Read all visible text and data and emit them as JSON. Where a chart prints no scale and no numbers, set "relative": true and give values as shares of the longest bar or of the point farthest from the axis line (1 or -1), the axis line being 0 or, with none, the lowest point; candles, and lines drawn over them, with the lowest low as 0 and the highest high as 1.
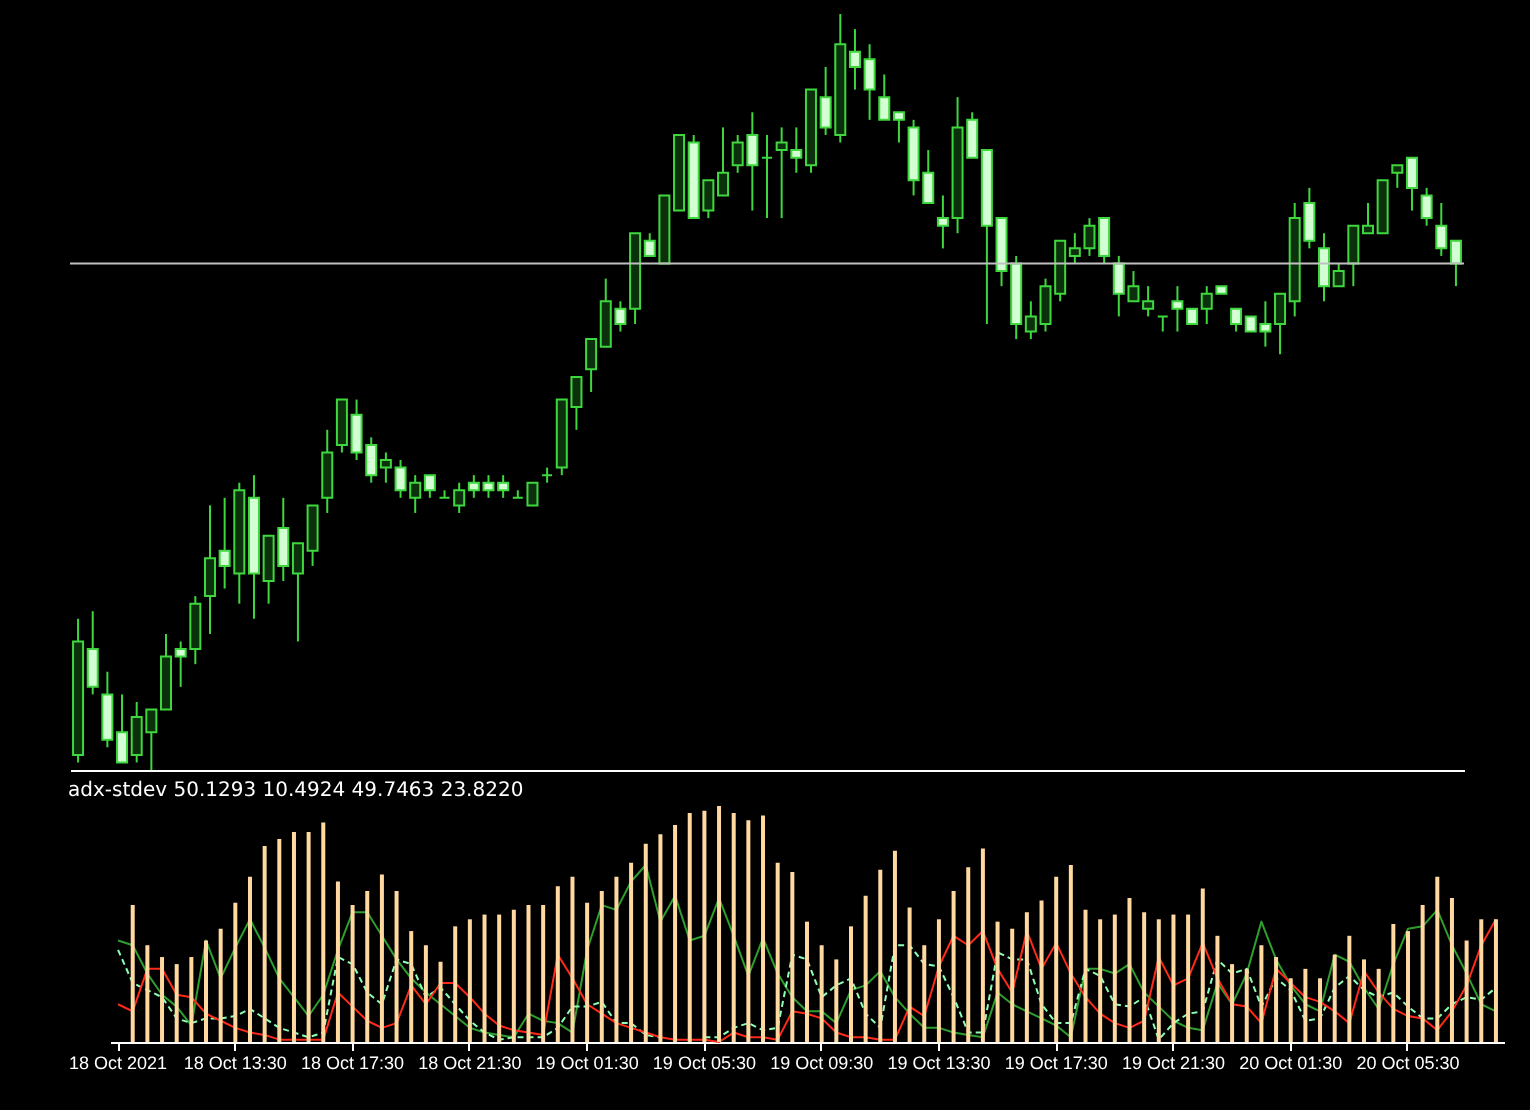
{
  "chart_data": [
    {
      "type": "candlestick",
      "relative": true,
      "tick_labels": false,
      "categories": [
        null,
        null,
        null,
        null,
        null,
        null,
        null,
        null,
        null,
        null,
        null,
        null,
        null,
        null,
        null,
        null,
        null,
        null,
        null,
        null,
        null,
        null,
        null,
        null,
        null,
        null,
        null,
        null,
        null,
        null,
        null,
        null,
        null,
        null,
        null,
        null,
        null,
        null,
        null,
        null,
        null,
        null,
        null,
        null,
        null,
        null,
        null,
        null,
        null,
        null,
        null,
        null,
        null,
        null,
        null,
        null,
        null,
        null,
        null,
        null,
        null,
        null,
        null,
        null,
        null,
        null,
        null,
        null,
        null,
        null,
        null,
        null,
        null,
        null,
        null,
        null,
        null,
        null,
        null,
        null,
        null,
        null,
        null,
        null,
        null,
        null,
        null,
        null,
        null,
        null,
        null,
        null,
        null,
        null,
        null
      ],
      "series": [
        {
          "color": "#3ed83e",
          "ohlc": [
            [
              0.02,
              0.2,
              0.01,
              0.17
            ],
            [
              0.16,
              0.21,
              0.1,
              0.11
            ],
            [
              0.1,
              0.13,
              0.03,
              0.04
            ],
            [
              0.05,
              0.1,
              0.01,
              0.01
            ],
            [
              0.02,
              0.09,
              0.01,
              0.07
            ],
            [
              0.05,
              0.08,
              0,
              0.08
            ],
            [
              0.08,
              0.18,
              0.08,
              0.15
            ],
            [
              0.16,
              0.17,
              0.11,
              0.15
            ],
            [
              0.16,
              0.23,
              0.14,
              0.22
            ],
            [
              0.23,
              0.35,
              0.18,
              0.28
            ],
            [
              0.29,
              0.36,
              0.24,
              0.27
            ],
            [
              0.26,
              0.38,
              0.22,
              0.37
            ],
            [
              0.36,
              0.39,
              0.2,
              0.26
            ],
            [
              0.25,
              0.31,
              0.22,
              0.31
            ],
            [
              0.32,
              0.36,
              0.25,
              0.27
            ],
            [
              0.26,
              0.3,
              0.17,
              0.3
            ],
            [
              0.29,
              0.35,
              0.27,
              0.35
            ],
            [
              0.36,
              0.45,
              0.34,
              0.42
            ],
            [
              0.43,
              0.49,
              0.42,
              0.49
            ],
            [
              0.47,
              0.49,
              0.41,
              0.42
            ],
            [
              0.43,
              0.44,
              0.38,
              0.39
            ],
            [
              0.4,
              0.42,
              0.38,
              0.41
            ],
            [
              0.4,
              0.41,
              0.36,
              0.37
            ],
            [
              0.36,
              0.39,
              0.34,
              0.38
            ],
            [
              0.39,
              0.39,
              0.36,
              0.37
            ],
            [
              0.36,
              0.37,
              0.36,
              0.36
            ],
            [
              0.35,
              0.38,
              0.34,
              0.37
            ],
            [
              0.38,
              0.39,
              0.36,
              0.37
            ],
            [
              0.38,
              0.39,
              0.36,
              0.37
            ],
            [
              0.38,
              0.39,
              0.36,
              0.37
            ],
            [
              0.36,
              0.37,
              0.36,
              0.36
            ],
            [
              0.35,
              0.38,
              0.35,
              0.38
            ],
            [
              0.39,
              0.4,
              0.38,
              0.39
            ],
            [
              0.4,
              0.49,
              0.39,
              0.49
            ],
            [
              0.48,
              0.52,
              0.45,
              0.52
            ],
            [
              0.53,
              0.57,
              0.5,
              0.57
            ],
            [
              0.56,
              0.65,
              0.56,
              0.62
            ],
            [
              0.61,
              0.62,
              0.58,
              0.59
            ],
            [
              0.61,
              0.71,
              0.59,
              0.71
            ],
            [
              0.7,
              0.71,
              0.68,
              0.68
            ],
            [
              0.67,
              0.76,
              0.67,
              0.76
            ],
            [
              0.74,
              0.84,
              0.74,
              0.84
            ],
            [
              0.83,
              0.84,
              0.73,
              0.73
            ],
            [
              0.74,
              0.78,
              0.73,
              0.78
            ],
            [
              0.76,
              0.85,
              0.76,
              0.79
            ],
            [
              0.8,
              0.84,
              0.79,
              0.83
            ],
            [
              0.84,
              0.87,
              0.74,
              0.8
            ],
            [
              0.81,
              0.84,
              0.73,
              0.81
            ],
            [
              0.82,
              0.85,
              0.73,
              0.83
            ],
            [
              0.82,
              0.85,
              0.79,
              0.81
            ],
            [
              0.8,
              0.9,
              0.79,
              0.9
            ],
            [
              0.89,
              0.93,
              0.84,
              0.85
            ],
            [
              0.84,
              1,
              0.83,
              0.96
            ],
            [
              0.95,
              0.98,
              0.9,
              0.93
            ],
            [
              0.94,
              0.96,
              0.86,
              0.9
            ],
            [
              0.89,
              0.92,
              0.86,
              0.86
            ],
            [
              0.87,
              0.87,
              0.83,
              0.86
            ],
            [
              0.85,
              0.86,
              0.76,
              0.78
            ],
            [
              0.79,
              0.82,
              0.75,
              0.75
            ],
            [
              0.73,
              0.76,
              0.69,
              0.72
            ],
            [
              0.73,
              0.89,
              0.71,
              0.85
            ],
            [
              0.86,
              0.87,
              0.81,
              0.81
            ],
            [
              0.82,
              0.82,
              0.59,
              0.72
            ],
            [
              0.73,
              0.73,
              0.64,
              0.66
            ],
            [
              0.67,
              0.68,
              0.57,
              0.59
            ],
            [
              0.58,
              0.62,
              0.57,
              0.6
            ],
            [
              0.59,
              0.65,
              0.58,
              0.64
            ],
            [
              0.63,
              0.7,
              0.62,
              0.7
            ],
            [
              0.68,
              0.71,
              0.67,
              0.69
            ],
            [
              0.69,
              0.73,
              0.68,
              0.72
            ],
            [
              0.73,
              0.73,
              0.67,
              0.68
            ],
            [
              0.67,
              0.68,
              0.6,
              0.63
            ],
            [
              0.62,
              0.66,
              0.62,
              0.64
            ],
            [
              0.61,
              0.64,
              0.6,
              0.62
            ],
            [
              0.6,
              0.6,
              0.58,
              0.6
            ],
            [
              0.62,
              0.64,
              0.58,
              0.61
            ],
            [
              0.61,
              0.61,
              0.59,
              0.59
            ],
            [
              0.61,
              0.64,
              0.59,
              0.63
            ],
            [
              0.64,
              0.64,
              0.63,
              0.63
            ],
            [
              0.61,
              0.61,
              0.58,
              0.59
            ],
            [
              0.6,
              0.6,
              0.58,
              0.58
            ],
            [
              0.59,
              0.62,
              0.56,
              0.58
            ],
            [
              0.59,
              0.63,
              0.55,
              0.63
            ],
            [
              0.62,
              0.75,
              0.6,
              0.73
            ],
            [
              0.75,
              0.77,
              0.69,
              0.7
            ],
            [
              0.69,
              0.71,
              0.62,
              0.64
            ],
            [
              0.64,
              0.67,
              0.64,
              0.66
            ],
            [
              0.67,
              0.72,
              0.64,
              0.72
            ],
            [
              0.71,
              0.75,
              0.71,
              0.72
            ],
            [
              0.71,
              0.78,
              0.71,
              0.78
            ],
            [
              0.79,
              0.8,
              0.77,
              0.8
            ],
            [
              0.81,
              0.81,
              0.74,
              0.77
            ],
            [
              0.76,
              0.77,
              0.72,
              0.73
            ],
            [
              0.72,
              0.75,
              0.68,
              0.69
            ],
            [
              0.7,
              0.7,
              0.64,
              0.67
            ]
          ]
        }
      ],
      "ref_lines": [
        {
          "axis": "y",
          "value": 0.67,
          "color": "#c0c0c0"
        }
      ]
    },
    {
      "type": "bar",
      "relative": true,
      "tick_labels": "x",
      "title": "adx-stdev 50.1293 10.4924 49.7463 23.8220",
      "categories": [
        "18 Oct 2021",
        null,
        null,
        null,
        null,
        null,
        null,
        null,
        "18 Oct 13:30",
        null,
        null,
        null,
        null,
        null,
        null,
        null,
        "18 Oct 17:30",
        null,
        null,
        null,
        null,
        null,
        null,
        null,
        "18 Oct 21:30",
        null,
        null,
        null,
        null,
        null,
        null,
        null,
        "19 Oct 01:30",
        null,
        null,
        null,
        null,
        null,
        null,
        null,
        "19 Oct 05:30",
        null,
        null,
        null,
        null,
        null,
        null,
        null,
        "19 Oct 09:30",
        null,
        null,
        null,
        null,
        null,
        null,
        null,
        "19 Oct 13:30",
        null,
        null,
        null,
        null,
        null,
        null,
        null,
        "19 Oct 17:30",
        null,
        null,
        null,
        null,
        null,
        null,
        null,
        "19 Oct 21:30",
        null,
        null,
        null,
        null,
        null,
        null,
        null,
        "20 Oct 01:30",
        null,
        null,
        null,
        null,
        null,
        null,
        null,
        "20 Oct 05:30",
        null,
        null,
        null,
        null,
        null,
        null
      ],
      "series": [
        {
          "color": "#ffd9a0",
          "values": [
            null,
            0.58,
            0.41,
            0.36,
            0.33,
            0.36,
            0.43,
            0.48,
            0.59,
            0.7,
            0.83,
            0.86,
            0.89,
            0.89,
            0.93,
            0.68,
            0.58,
            0.64,
            0.71,
            0.64,
            0.47,
            0.41,
            0.34,
            0.49,
            0.52,
            0.54,
            0.54,
            0.56,
            0.58,
            0.58,
            0.66,
            0.7,
            0.59,
            0.64,
            0.7,
            0.76,
            0.84,
            0.88,
            0.92,
            0.97,
            0.98,
            1.0,
            0.97,
            0.94,
            0.96,
            0.76,
            0.72,
            0.51,
            0.41,
            0.35,
            0.49,
            0.62,
            0.73,
            0.81,
            0.57,
            0.41,
            0.52,
            0.64,
            0.74,
            0.82,
            0.51,
            0.48,
            0.55,
            0.6,
            0.7,
            0.75,
            0.56,
            0.52,
            0.54,
            0.61,
            0.55,
            0.52,
            0.54,
            0.54,
            0.65,
            0.45,
            0.33,
            0.31,
            0.41,
            0.36,
            0.27,
            0.31,
            0.27,
            0.37,
            0.45,
            0.35,
            0.31,
            0.5,
            0.47,
            0.58,
            0.7,
            0.61,
            0.43,
            0.52,
            0.52
          ]
        },
        {
          "type": "line",
          "color": "#2e9e2e",
          "values": [
            0.43,
            0.41,
            0.29,
            0.2,
            0.15,
            0.07,
            0.43,
            0.27,
            0.4,
            0.52,
            0.4,
            0.27,
            0.19,
            0.11,
            0.2,
            0.39,
            0.55,
            0.55,
            0.45,
            0.35,
            0.27,
            0.21,
            0.16,
            0.11,
            0.06,
            0.04,
            0.03,
            0.02,
            0.12,
            0.09,
            0.08,
            0.04,
            0.39,
            0.58,
            0.56,
            0.68,
            0.75,
            0.51,
            0.62,
            0.43,
            0.45,
            0.61,
            0.45,
            0.28,
            0.44,
            0.29,
            0.19,
            0.13,
            0.13,
            0.08,
            0.22,
            0.24,
            0.3,
            0.19,
            0.12,
            0.06,
            0.06,
            0.04,
            0.03,
            0.02,
            0.21,
            0.16,
            0.13,
            0.1,
            0.07,
            0.02,
            0.31,
            0.31,
            0.29,
            0.33,
            0.21,
            0.15,
            0.09,
            0.06,
            0.05,
            0.25,
            0.16,
            0.29,
            0.51,
            0.35,
            0.24,
            0.16,
            0.13,
            0.37,
            0.34,
            0.23,
            0.14,
            0.33,
            0.48,
            0.49,
            0.56,
            0.41,
            0.29,
            0.16,
            0.13
          ]
        },
        {
          "type": "line",
          "line_style": "dashed",
          "color": "#8cffb4",
          "values": [
            0.39,
            0.25,
            0.22,
            0.19,
            0.1,
            0.08,
            0.1,
            0.1,
            0.11,
            0.14,
            0.1,
            0.06,
            0.04,
            0.02,
            0.04,
            0.36,
            0.33,
            0.21,
            0.16,
            0.35,
            0.33,
            0.19,
            0.23,
            0.16,
            0.09,
            0.04,
            0.01,
            0.02,
            0.02,
            0.02,
            0.06,
            0.15,
            0.15,
            0.17,
            0.08,
            0.08,
            0.03,
            0.02,
            null,
            null,
            0.02,
            0.02,
            0.06,
            0.08,
            0.05,
            0.06,
            0.37,
            0.35,
            0.19,
            0.24,
            0.27,
            0.12,
            0.06,
            0.41,
            0.41,
            0.33,
            0.32,
            0.19,
            0.04,
            0.04,
            0.38,
            0.35,
            0.35,
            0.16,
            0.08,
            0.08,
            0.31,
            0.28,
            0.16,
            0.15,
            0.19,
            0.01,
            0.08,
            0.12,
            0.13,
            0.35,
            0.29,
            0.31,
            0.15,
            0.27,
            0.22,
            0.09,
            0.1,
            0.23,
            0.28,
            0.22,
            0.19,
            0.21,
            0.15,
            0.1,
            0.1,
            0.16,
            0.19,
            0.18,
            0.23
          ]
        },
        {
          "type": "line",
          "color": "#ff2a1a",
          "values": [
            0.16,
            0.13,
            0.31,
            0.31,
            0.2,
            0.19,
            0.12,
            0.09,
            0.06,
            0.04,
            0.03,
            0.01,
            0.01,
            0.01,
            0.01,
            0.21,
            0.15,
            0.09,
            0.06,
            0.08,
            0.24,
            0.16,
            0.25,
            0.25,
            0.19,
            0.12,
            0.07,
            0.05,
            0.04,
            0.03,
            0.37,
            0.27,
            0.16,
            0.12,
            0.08,
            0.06,
            0.04,
            0.02,
            0.01,
            0.01,
            0.01,
            0,
            0.04,
            0.02,
            0.02,
            0.01,
            0.13,
            0.12,
            0.1,
            0.04,
            0.02,
            0.02,
            0.01,
            0.01,
            0.15,
            0.11,
            0.32,
            0.45,
            0.41,
            0.47,
            0.31,
            0.21,
            0.47,
            0.31,
            0.42,
            0.29,
            0.19,
            0.12,
            0.08,
            0.06,
            0.09,
            0.36,
            0.24,
            0.27,
            0.42,
            0.27,
            0.16,
            0.15,
            0.08,
            0.31,
            0.25,
            0.19,
            0.17,
            0.13,
            0.08,
            0.3,
            0.21,
            0.14,
            0.11,
            0.1,
            0.05,
            0.13,
            0.24,
            0.41,
            0.52
          ]
        }
      ]
    }
  ]
}
